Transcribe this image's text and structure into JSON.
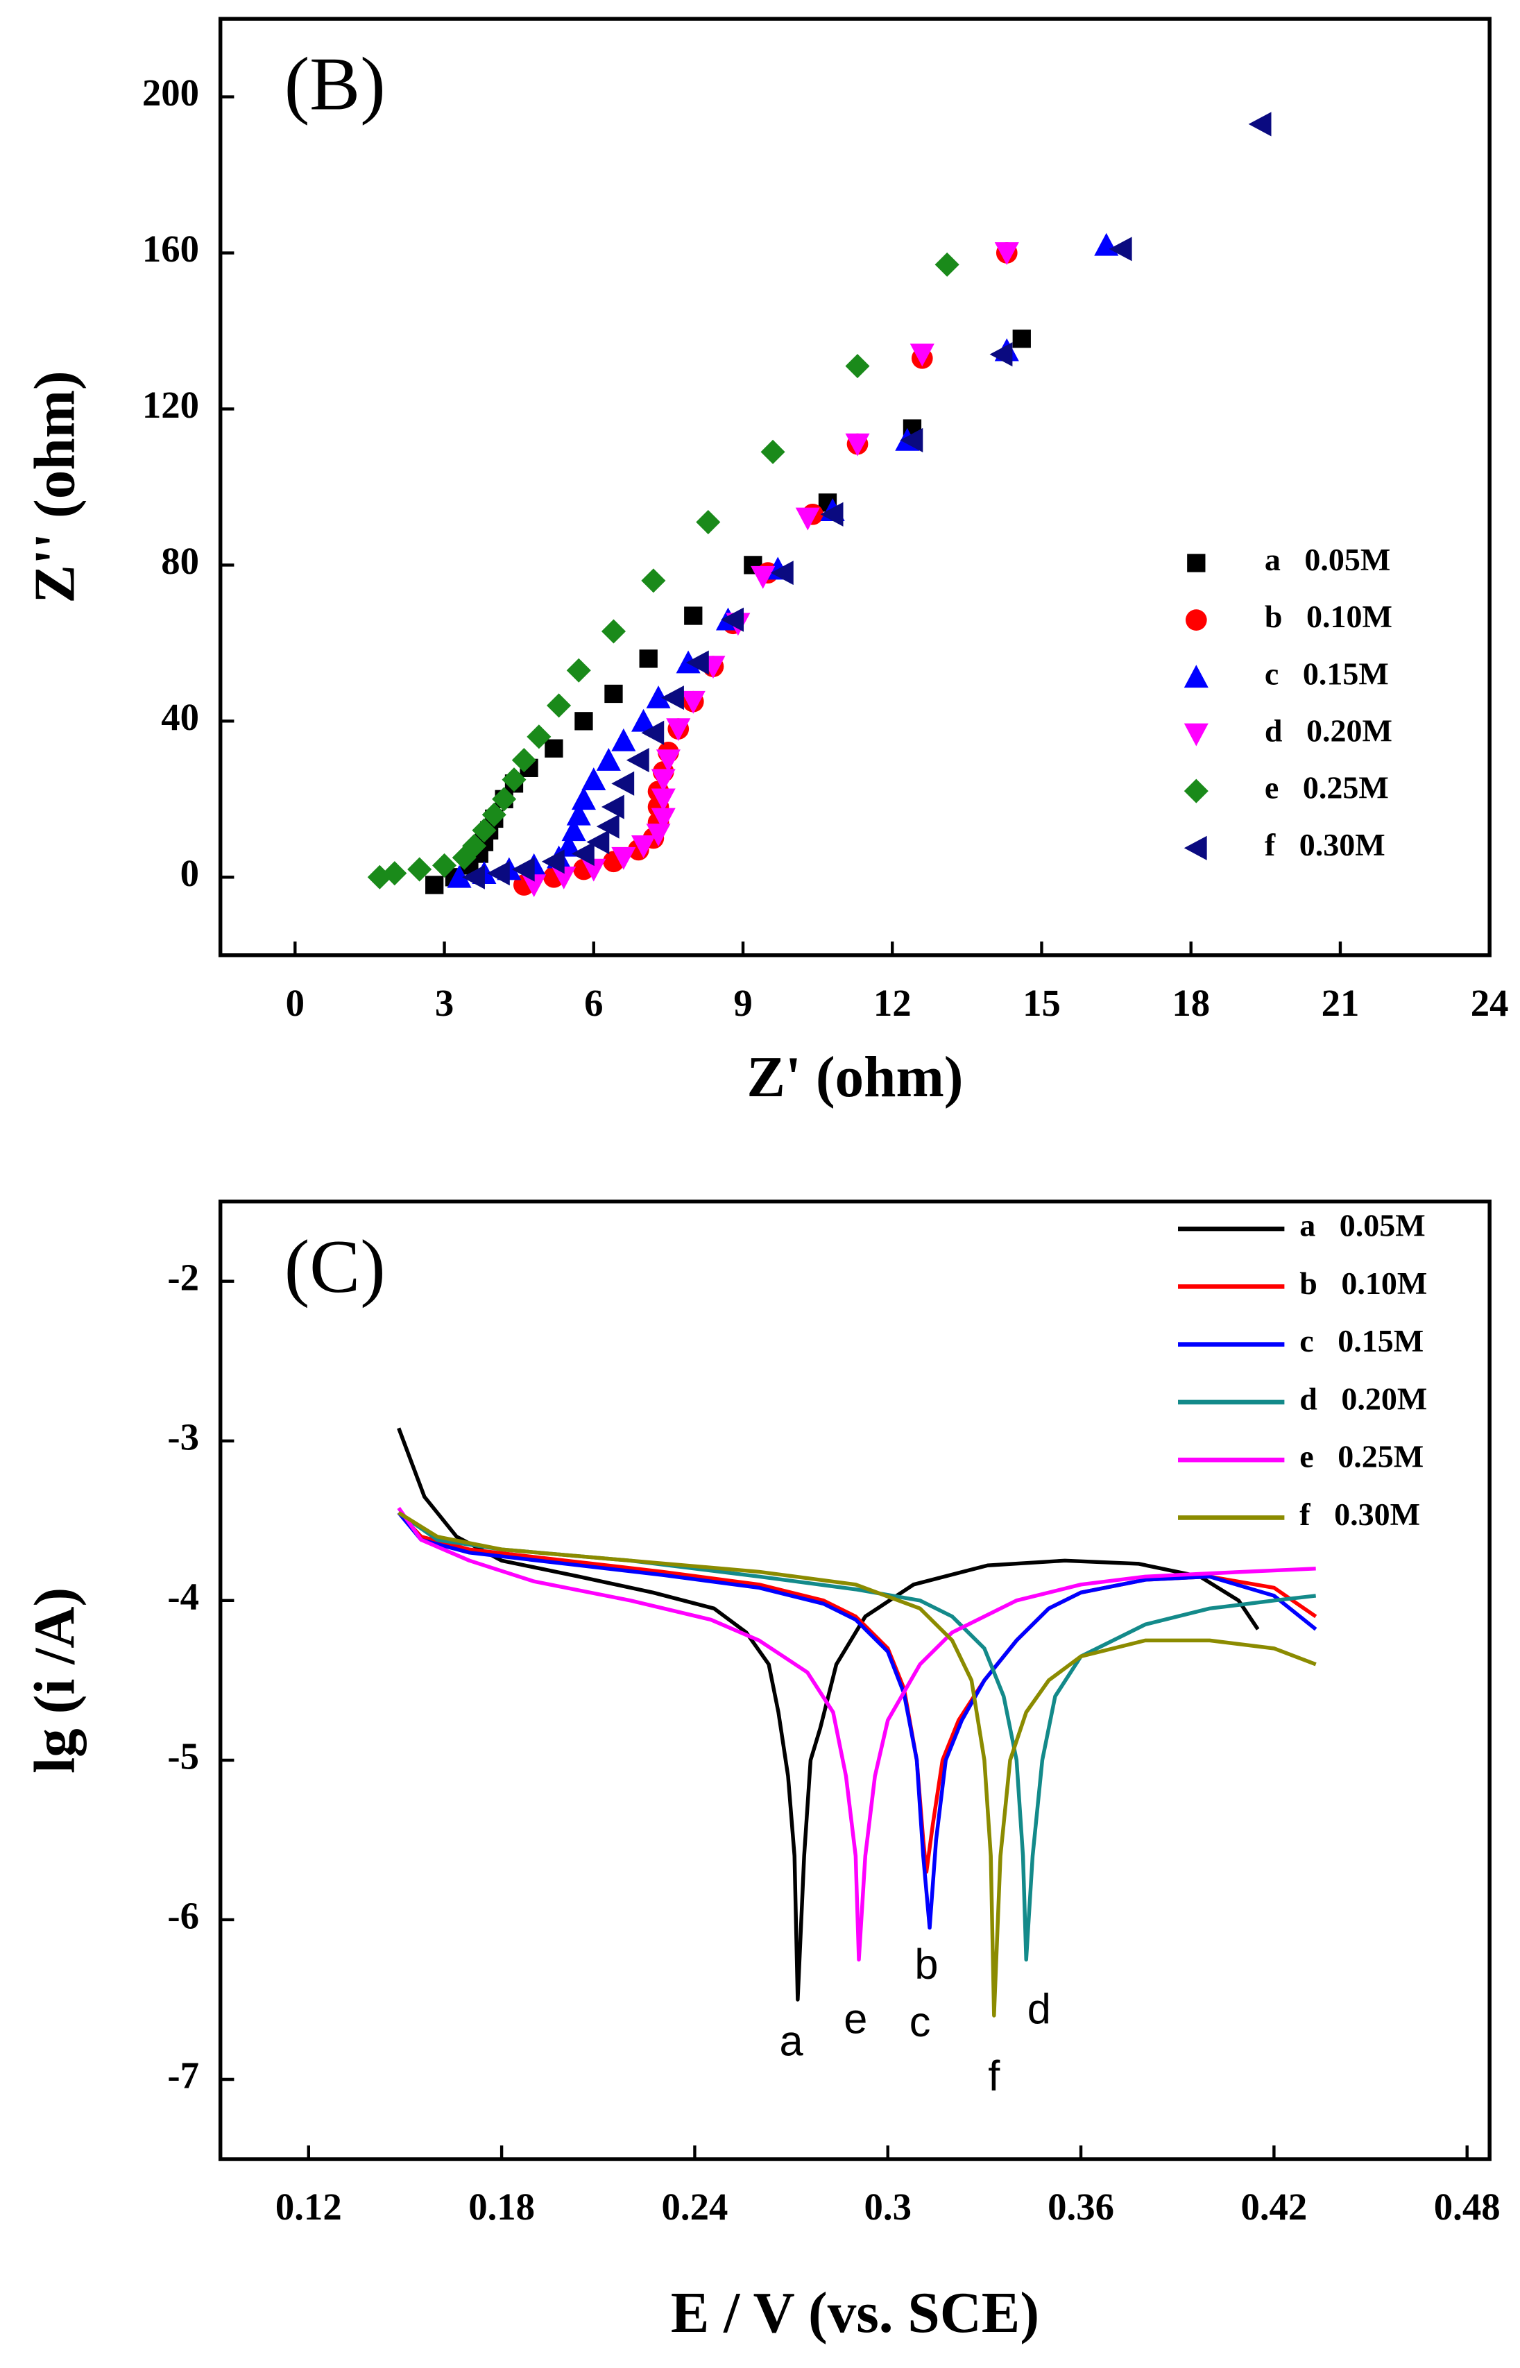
{
  "chart_data": [
    {
      "type": "scatter",
      "panel_label": "(B)",
      "x_label": "Z' (ohm)",
      "y_label": "Z'' (ohm)",
      "xlim": [
        -1.5,
        24
      ],
      "xticks": [
        0,
        3,
        6,
        9,
        12,
        15,
        18,
        21,
        24
      ],
      "ylim": [
        -20,
        220
      ],
      "yticks": [
        0,
        40,
        80,
        120,
        160,
        200
      ],
      "legend": "right",
      "series": [
        {
          "name": "a   0.05M",
          "color": "#000000",
          "marker": "square",
          "x": [
            2.8,
            3.2,
            3.5,
            3.7,
            3.8,
            3.9,
            4.0,
            4.2,
            4.4,
            4.7,
            5.2,
            5.8,
            6.4,
            7.1,
            8.0,
            9.2,
            10.7,
            12.4,
            14.6
          ],
          "values": [
            -2,
            0,
            3,
            6,
            9,
            12,
            15,
            20,
            24,
            28,
            33,
            40,
            47,
            56,
            67,
            80,
            96,
            115,
            138
          ]
        },
        {
          "name": "b   0.10M",
          "color": "#ff0000",
          "marker": "circle",
          "x": [
            4.6,
            5.2,
            5.8,
            6.4,
            6.9,
            7.2,
            7.3,
            7.3,
            7.3,
            7.4,
            7.5,
            7.7,
            8.0,
            8.4,
            8.8,
            9.5,
            10.4,
            11.3,
            12.6,
            14.3
          ],
          "values": [
            -2,
            0,
            2,
            4,
            7,
            10,
            14,
            18,
            22,
            27,
            32,
            38,
            45,
            54,
            65,
            78,
            93,
            111,
            133,
            160
          ]
        },
        {
          "name": "c   0.15M",
          "color": "#0000ff",
          "marker": "triangle-up",
          "x": [
            3.3,
            3.8,
            4.3,
            4.8,
            5.3,
            5.5,
            5.6,
            5.7,
            5.8,
            6.0,
            6.3,
            6.6,
            7.0,
            7.3,
            7.9,
            8.7,
            9.7,
            10.8,
            12.3,
            14.3,
            16.3
          ],
          "values": [
            0,
            1,
            2,
            3,
            5,
            8,
            12,
            16,
            20,
            25,
            30,
            35,
            40,
            46,
            55,
            66,
            79,
            94,
            112,
            135,
            162
          ]
        },
        {
          "name": "d   0.20M",
          "color": "#ff00ff",
          "marker": "triangle-down",
          "x": [
            4.8,
            5.4,
            6.0,
            6.6,
            7.0,
            7.3,
            7.4,
            7.4,
            7.4,
            7.5,
            7.7,
            8.0,
            8.4,
            8.9,
            9.4,
            10.3,
            11.3,
            12.6,
            14.3
          ],
          "values": [
            -2,
            0,
            2,
            5,
            8,
            11,
            15,
            20,
            25,
            30,
            38,
            45,
            54,
            65,
            77,
            92,
            111,
            134,
            160
          ]
        },
        {
          "name": "e   0.25M",
          "color": "#1a8a1a",
          "marker": "diamond",
          "x": [
            1.7,
            2.0,
            2.5,
            3.0,
            3.4,
            3.6,
            3.8,
            4.0,
            4.2,
            4.4,
            4.6,
            4.9,
            5.3,
            5.7,
            6.4,
            7.2,
            8.3,
            9.6,
            11.3,
            13.1
          ],
          "values": [
            0,
            1,
            2,
            3,
            5,
            8,
            12,
            16,
            20,
            25,
            30,
            36,
            44,
            53,
            63,
            76,
            91,
            109,
            131,
            157
          ]
        },
        {
          "name": "f   0.30M",
          "color": "#0a0a80",
          "marker": "triangle-left",
          "x": [
            3.6,
            4.1,
            4.6,
            5.2,
            5.8,
            6.1,
            6.3,
            6.4,
            6.6,
            6.9,
            7.2,
            7.6,
            8.1,
            8.8,
            9.8,
            10.8,
            12.4,
            14.2,
            16.6,
            19.4
          ],
          "values": [
            0,
            1,
            2,
            4,
            6,
            9,
            13,
            18,
            24,
            30,
            37,
            46,
            55,
            66,
            78,
            93,
            112,
            134,
            161,
            193
          ]
        }
      ]
    },
    {
      "type": "line",
      "panel_label": "(C)",
      "x_label": "E / V (vs. SCE)",
      "y_label": "lg (i /A)",
      "xlim": [
        0.0926,
        0.487
      ],
      "xticks": [
        0.12,
        0.18,
        0.24,
        0.3,
        0.36,
        0.42,
        0.48
      ],
      "ylim": [
        -7.5,
        -1.5
      ],
      "yticks": [
        -7,
        -6,
        -5,
        -4,
        -3,
        -2
      ],
      "legend": "upper right",
      "series": [
        {
          "name": "a   0.05M",
          "color": "#000000",
          "x": [
            0.148,
            0.156,
            0.166,
            0.18,
            0.204,
            0.227,
            0.246,
            0.256,
            0.263,
            0.266,
            0.269,
            0.271,
            0.272,
            0.274,
            0.276,
            0.279,
            0.284,
            0.293,
            0.308,
            0.331,
            0.355,
            0.378,
            0.397,
            0.409,
            0.415
          ],
          "values": [
            -2.92,
            -3.35,
            -3.6,
            -3.75,
            -3.85,
            -3.95,
            -4.05,
            -4.2,
            -4.4,
            -4.7,
            -5.1,
            -5.6,
            -6.5,
            -5.6,
            -5.0,
            -4.8,
            -4.4,
            -4.1,
            -3.9,
            -3.78,
            -3.75,
            -3.77,
            -3.85,
            -4.0,
            -4.18
          ]
        },
        {
          "name": "b   0.10M",
          "color": "#ff0000",
          "x": [
            0.148,
            0.155,
            0.17,
            0.2,
            0.23,
            0.26,
            0.28,
            0.29,
            0.3,
            0.305,
            0.309,
            0.311,
            0.312,
            0.314,
            0.317,
            0.322,
            0.33,
            0.34,
            0.35,
            0.36,
            0.38,
            0.4,
            0.42,
            0.433
          ],
          "values": [
            -3.45,
            -3.6,
            -3.68,
            -3.75,
            -3.82,
            -3.9,
            -4.0,
            -4.1,
            -4.3,
            -4.55,
            -5.0,
            -5.5,
            -5.7,
            -5.4,
            -5.0,
            -4.75,
            -4.5,
            -4.25,
            -4.05,
            -3.95,
            -3.87,
            -3.85,
            -3.92,
            -4.1
          ]
        },
        {
          "name": "c   0.15M",
          "color": "#0000ff",
          "x": [
            0.148,
            0.155,
            0.17,
            0.2,
            0.23,
            0.26,
            0.28,
            0.29,
            0.3,
            0.305,
            0.309,
            0.311,
            0.313,
            0.315,
            0.318,
            0.323,
            0.33,
            0.34,
            0.35,
            0.36,
            0.38,
            0.4,
            0.42,
            0.433
          ],
          "values": [
            -3.45,
            -3.62,
            -3.7,
            -3.77,
            -3.84,
            -3.92,
            -4.02,
            -4.12,
            -4.32,
            -4.58,
            -5.0,
            -5.6,
            -6.05,
            -5.5,
            -5.0,
            -4.75,
            -4.5,
            -4.25,
            -4.05,
            -3.95,
            -3.87,
            -3.85,
            -3.97,
            -4.18
          ]
        },
        {
          "name": "d   0.20M",
          "color": "#138a8a",
          "x": [
            0.148,
            0.16,
            0.18,
            0.22,
            0.26,
            0.29,
            0.31,
            0.32,
            0.33,
            0.336,
            0.34,
            0.342,
            0.343,
            0.345,
            0.348,
            0.352,
            0.36,
            0.38,
            0.4,
            0.42,
            0.433
          ],
          "values": [
            -3.45,
            -3.62,
            -3.68,
            -3.75,
            -3.85,
            -3.93,
            -4.0,
            -4.1,
            -4.3,
            -4.6,
            -5.0,
            -5.6,
            -6.25,
            -5.6,
            -5.0,
            -4.6,
            -4.35,
            -4.15,
            -4.05,
            -4.0,
            -3.97
          ]
        },
        {
          "name": "e   0.25M",
          "color": "#ff00ff",
          "x": [
            0.148,
            0.155,
            0.17,
            0.19,
            0.22,
            0.245,
            0.26,
            0.275,
            0.283,
            0.287,
            0.29,
            0.291,
            0.293,
            0.296,
            0.3,
            0.31,
            0.32,
            0.34,
            0.36,
            0.38,
            0.4,
            0.433
          ],
          "values": [
            -3.42,
            -3.62,
            -3.75,
            -3.88,
            -4.0,
            -4.12,
            -4.25,
            -4.45,
            -4.7,
            -5.1,
            -5.6,
            -6.25,
            -5.6,
            -5.1,
            -4.75,
            -4.4,
            -4.2,
            -4.0,
            -3.9,
            -3.85,
            -3.83,
            -3.8
          ]
        },
        {
          "name": "f   0.30M",
          "color": "#8b8b00",
          "x": [
            0.148,
            0.16,
            0.18,
            0.22,
            0.26,
            0.29,
            0.31,
            0.32,
            0.326,
            0.33,
            0.332,
            0.333,
            0.335,
            0.338,
            0.343,
            0.35,
            0.36,
            0.38,
            0.4,
            0.42,
            0.433
          ],
          "values": [
            -3.45,
            -3.6,
            -3.68,
            -3.75,
            -3.82,
            -3.9,
            -4.05,
            -4.25,
            -4.5,
            -5.0,
            -5.6,
            -6.6,
            -5.6,
            -5.0,
            -4.7,
            -4.5,
            -4.35,
            -4.25,
            -4.25,
            -4.3,
            -4.4
          ]
        }
      ],
      "annotations": [
        {
          "text": "a",
          "x": 0.27,
          "y": -6.78
        },
        {
          "text": "e",
          "x": 0.29,
          "y": -6.64
        },
        {
          "text": "c",
          "x": 0.31,
          "y": -6.66
        },
        {
          "text": "b",
          "x": 0.312,
          "y": -6.3
        },
        {
          "text": "f",
          "x": 0.333,
          "y": -7.0
        },
        {
          "text": "d",
          "x": 0.347,
          "y": -6.58
        }
      ]
    }
  ]
}
